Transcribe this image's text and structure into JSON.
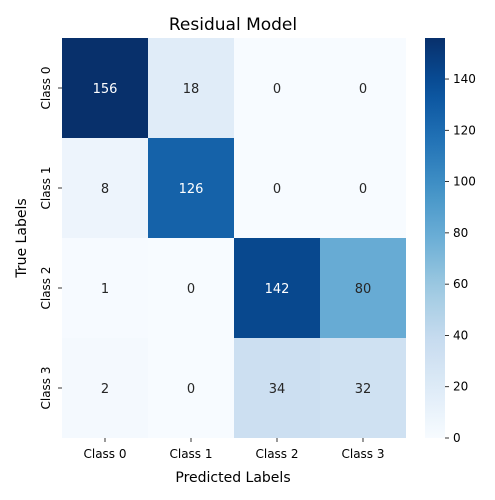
{
  "chart_data": {
    "type": "heatmap",
    "title": "Residual Model",
    "xlabel": "Predicted Labels",
    "ylabel": "True Labels",
    "x_categories": [
      "Class 0",
      "Class 1",
      "Class 2",
      "Class 3"
    ],
    "y_categories": [
      "Class 0",
      "Class 1",
      "Class 2",
      "Class 3"
    ],
    "matrix": [
      [
        156,
        18,
        0,
        0
      ],
      [
        8,
        126,
        0,
        0
      ],
      [
        1,
        0,
        142,
        80
      ],
      [
        2,
        0,
        34,
        32
      ]
    ],
    "colormap": "Blues",
    "colorbar": {
      "min": 0,
      "max": 156,
      "ticks": [
        0,
        20,
        40,
        60,
        80,
        100,
        120,
        140
      ]
    },
    "colors": {
      "low": "#f7fbff",
      "high": "#08306b"
    }
  }
}
